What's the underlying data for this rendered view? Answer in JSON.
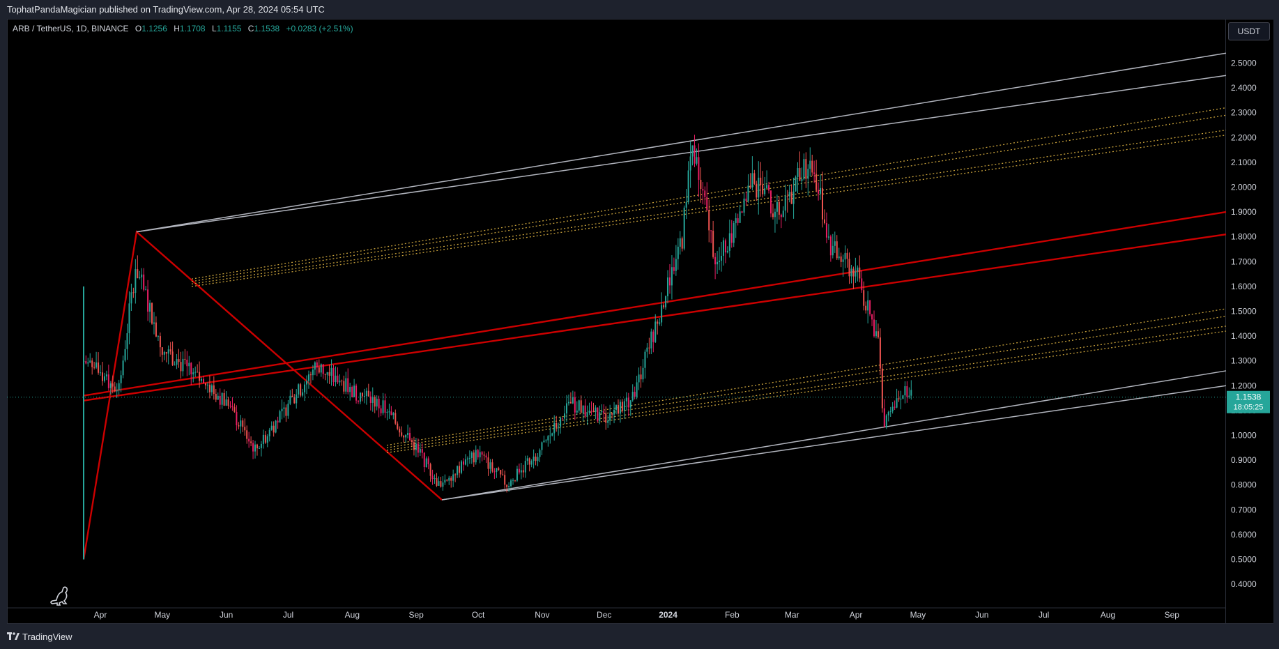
{
  "header": {
    "published_text": "TophatPandaMagician published on TradingView.com, Apr 28, 2024 05:54 UTC"
  },
  "legend": {
    "symbol": "ARB / TetherUS, 1D, BINANCE",
    "open_label": "O",
    "open": "1.1256",
    "high_label": "H",
    "high": "1.1708",
    "low_label": "L",
    "low": "1.1155",
    "close_label": "C",
    "close": "1.1538",
    "change": "+0.0283 (+2.51%)"
  },
  "price_axis": {
    "unit_button": "USDT",
    "current_price": "1.1538",
    "countdown": "18:05:25"
  },
  "footer": {
    "brand": "TradingView"
  },
  "colors": {
    "up": "#26a69a",
    "down": "#ef5350",
    "pink": "#e91e63",
    "channel_gray": "#b2b5be",
    "red_line": "#cc0000",
    "dotted_gold": "#c8a23c",
    "price_tag": "#26a69a"
  },
  "chart_data": {
    "type": "candlestick",
    "y_axis_ticks": [
      "2.5000",
      "2.4000",
      "2.3000",
      "2.2000",
      "2.1000",
      "2.0000",
      "1.9000",
      "1.8000",
      "1.7000",
      "1.6000",
      "1.5000",
      "1.4000",
      "1.3000",
      "1.2000",
      "1.1000",
      "1.0000",
      "0.9000",
      "0.8000",
      "0.7000",
      "0.6000",
      "0.5000",
      "0.4000"
    ],
    "x_axis_ticks": [
      "Apr",
      "May",
      "Jun",
      "Jul",
      "Aug",
      "Sep",
      "Oct",
      "Nov",
      "Dec",
      "2024",
      "Feb",
      "Mar",
      "Apr",
      "May",
      "Jun",
      "Jul",
      "Aug",
      "Sep"
    ],
    "ylim": [
      0.33,
      2.64
    ],
    "price_path": [
      {
        "date": "2023-03-23",
        "price": 1.18
      },
      {
        "date": "2023-03-24",
        "price": 1.3
      },
      {
        "date": "2023-04-01",
        "price": 1.25
      },
      {
        "date": "2023-04-10",
        "price": 1.18
      },
      {
        "date": "2023-04-18",
        "price": 1.68
      },
      {
        "date": "2023-05-01",
        "price": 1.35
      },
      {
        "date": "2023-05-15",
        "price": 1.25
      },
      {
        "date": "2023-06-01",
        "price": 1.13
      },
      {
        "date": "2023-06-15",
        "price": 0.94
      },
      {
        "date": "2023-07-01",
        "price": 1.12
      },
      {
        "date": "2023-07-15",
        "price": 1.28
      },
      {
        "date": "2023-08-01",
        "price": 1.18
      },
      {
        "date": "2023-08-15",
        "price": 1.12
      },
      {
        "date": "2023-09-01",
        "price": 0.95
      },
      {
        "date": "2023-09-12",
        "price": 0.8
      },
      {
        "date": "2023-10-01",
        "price": 0.93
      },
      {
        "date": "2023-10-15",
        "price": 0.8
      },
      {
        "date": "2023-11-01",
        "price": 0.95
      },
      {
        "date": "2023-11-15",
        "price": 1.13
      },
      {
        "date": "2023-12-01",
        "price": 1.07
      },
      {
        "date": "2023-12-15",
        "price": 1.15
      },
      {
        "date": "2023-12-28",
        "price": 1.5
      },
      {
        "date": "2024-01-08",
        "price": 1.8
      },
      {
        "date": "2024-01-12",
        "price": 2.18
      },
      {
        "date": "2024-01-25",
        "price": 1.68
      },
      {
        "date": "2024-02-10",
        "price": 2.02
      },
      {
        "date": "2024-02-25",
        "price": 1.9
      },
      {
        "date": "2024-03-10",
        "price": 2.12
      },
      {
        "date": "2024-03-20",
        "price": 1.75
      },
      {
        "date": "2024-04-01",
        "price": 1.65
      },
      {
        "date": "2024-04-12",
        "price": 1.38
      },
      {
        "date": "2024-04-14",
        "price": 1.05
      },
      {
        "date": "2024-04-22",
        "price": 1.18
      },
      {
        "date": "2024-04-28",
        "price": 1.1538
      }
    ]
  }
}
